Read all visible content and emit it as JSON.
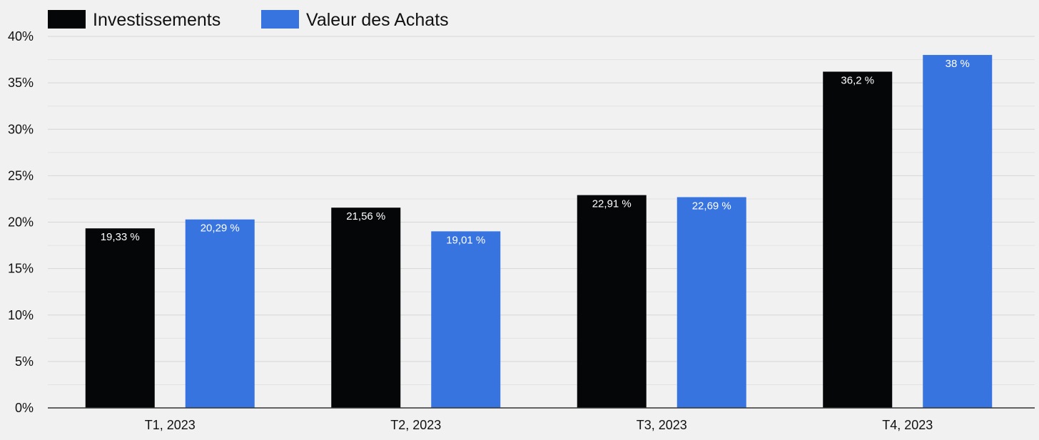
{
  "chart_data": {
    "type": "bar",
    "title": "",
    "xlabel": "",
    "ylabel": "",
    "categories": [
      "T1, 2023",
      "T2, 2023",
      "T3, 2023",
      "T4, 2023"
    ],
    "series": [
      {
        "name": "Investissements",
        "color": "#040608",
        "values": [
          19.33,
          21.56,
          22.91,
          36.2
        ],
        "labels": [
          "19,33 %",
          "21,56 %",
          "22,91 %",
          "36,2 %"
        ]
      },
      {
        "name": "Valeur des Achats",
        "color": "#3874e0",
        "values": [
          20.29,
          19.01,
          22.69,
          38
        ],
        "labels": [
          "20,29 %",
          "19,01 %",
          "22,69 %",
          "38 %"
        ]
      }
    ],
    "ylim": [
      0,
      40
    ],
    "yticks": [
      0,
      5,
      10,
      15,
      20,
      25,
      30,
      35,
      40
    ],
    "ytick_labels": [
      "0%",
      "5%",
      "10%",
      "15%",
      "20%",
      "25%",
      "30%",
      "35%",
      "40%"
    ],
    "grid": true,
    "legend_position": "top-left"
  }
}
